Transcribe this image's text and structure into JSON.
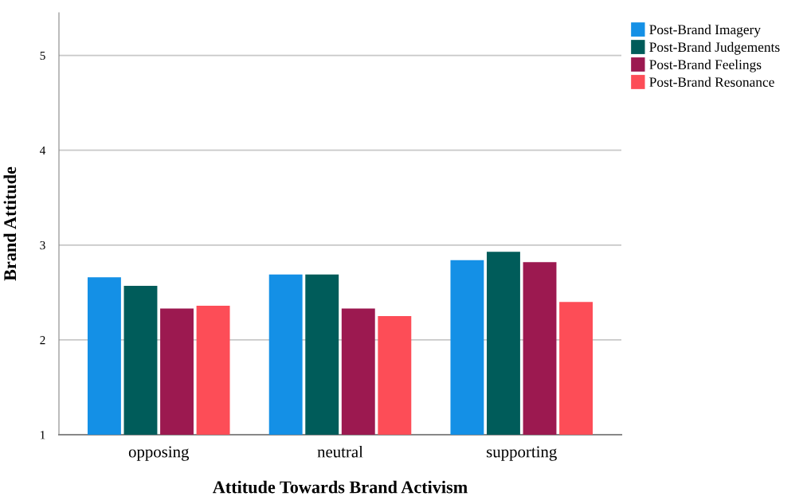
{
  "chart_data": {
    "type": "bar",
    "xlabel": "Attitude Towards Brand Activism",
    "ylabel": "Brand Attitude",
    "categories": [
      "opposing",
      "neutral",
      "supporting"
    ],
    "series": [
      {
        "name": "Post-Brand Imagery",
        "color": "#1490e6",
        "values": [
          2.66,
          2.69,
          2.84
        ]
      },
      {
        "name": "Post-Brand Judgements",
        "color": "#005c5a",
        "values": [
          2.57,
          2.69,
          2.93
        ]
      },
      {
        "name": "Post-Brand Feelings",
        "color": "#9c1950",
        "values": [
          2.33,
          2.33,
          2.82
        ]
      },
      {
        "name": "Post-Brand Resonance",
        "color": "#fd4d57",
        "values": [
          2.36,
          2.25,
          2.4
        ]
      }
    ],
    "ylim": [
      1,
      5.45
    ],
    "yticks": [
      1,
      2,
      3,
      4,
      5
    ],
    "grid": "y",
    "legend": "top right"
  }
}
